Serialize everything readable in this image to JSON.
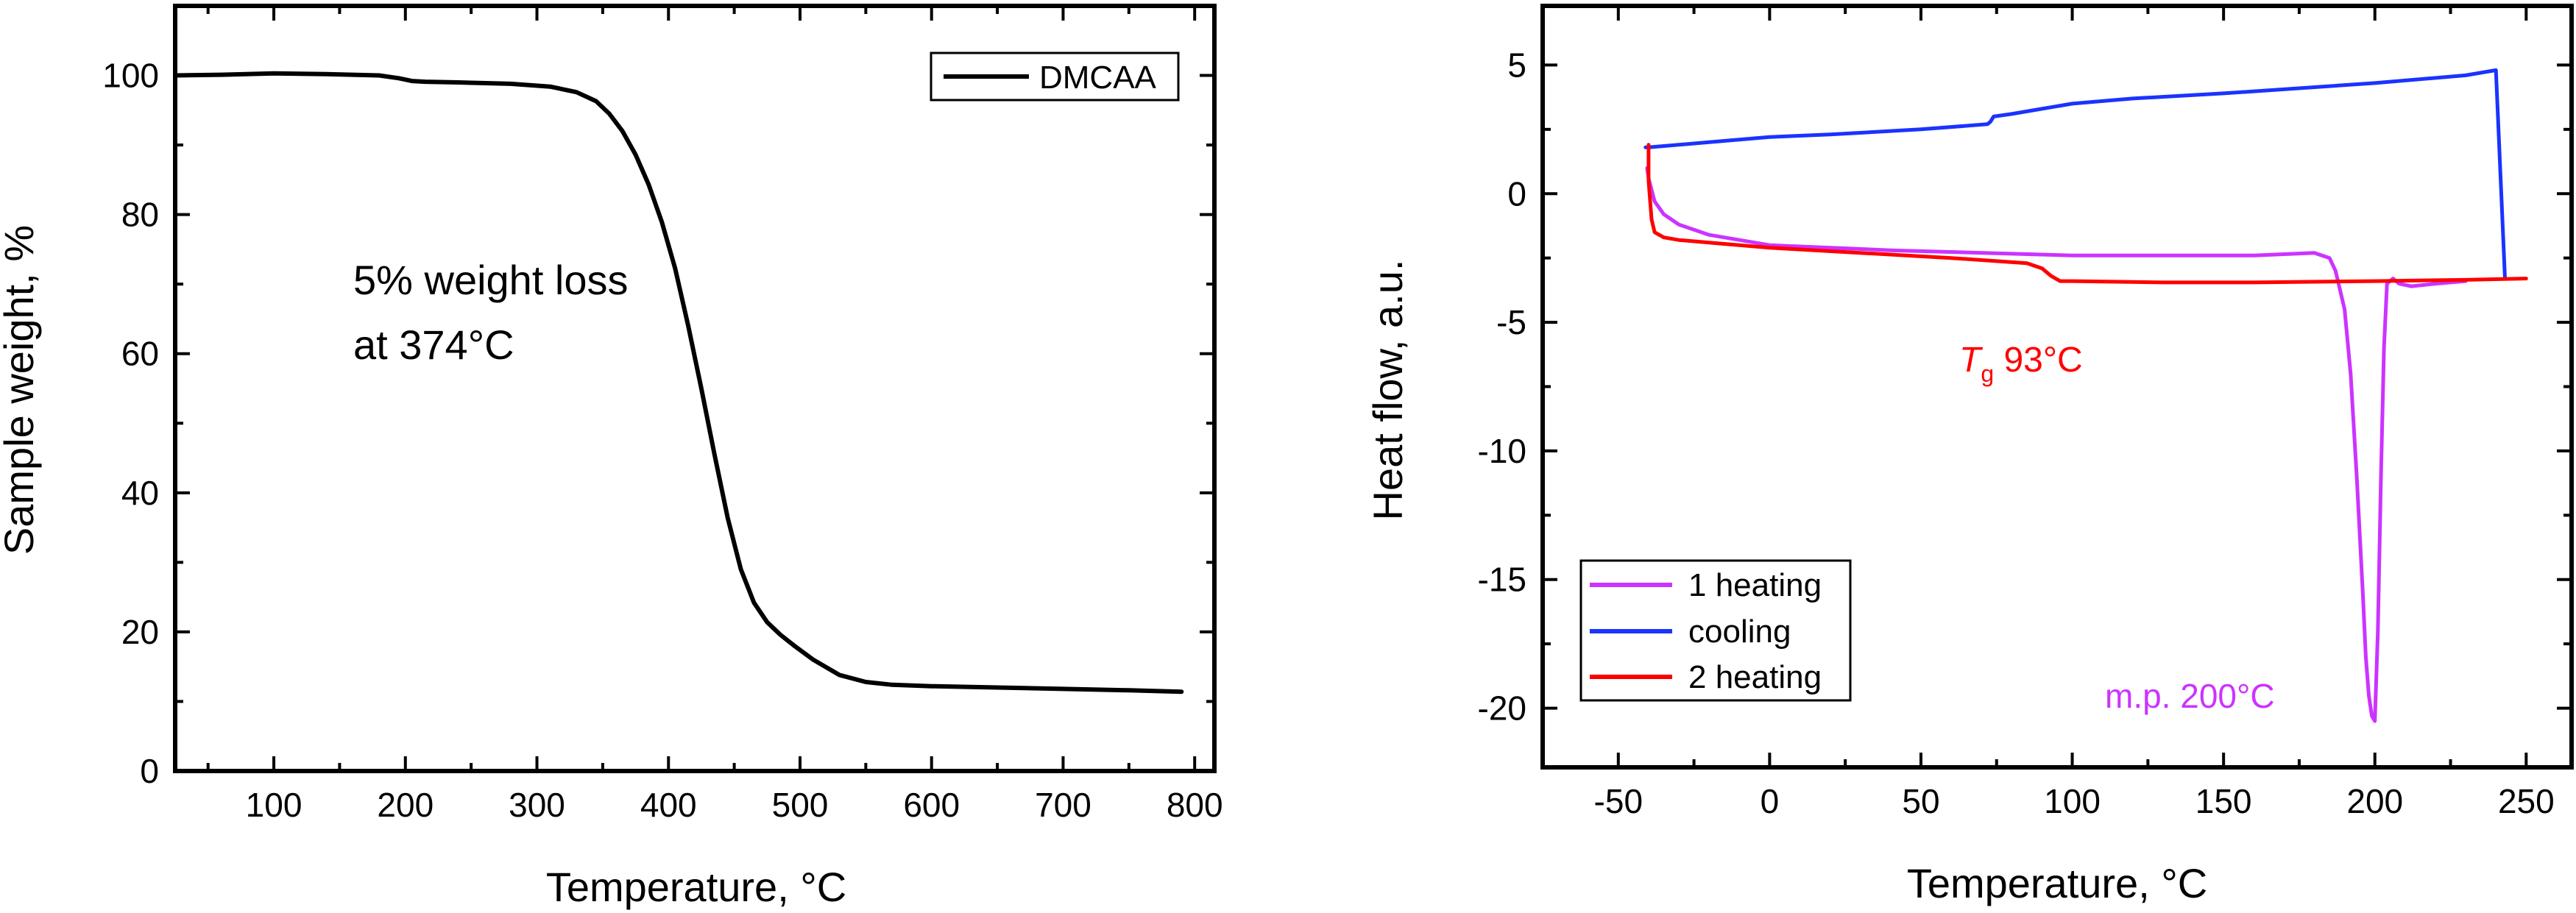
{
  "chart_data": [
    {
      "type": "line",
      "xlabel": "Temperature, °C",
      "ylabel": "Sample weight, %",
      "xlim": [
        25,
        815
      ],
      "ylim": [
        0,
        110
      ],
      "xticks": [
        100,
        200,
        300,
        400,
        500,
        600,
        700,
        800
      ],
      "yticks": [
        0,
        20,
        40,
        60,
        80,
        100
      ],
      "legend_position": "top-right",
      "annotations": [
        "5% weight loss",
        "at 374°C"
      ],
      "series": [
        {
          "name": "DMCAA",
          "color": "#000000",
          "x": [
            25,
            60,
            100,
            140,
            180,
            195,
            205,
            215,
            240,
            280,
            310,
            330,
            345,
            355,
            365,
            375,
            385,
            395,
            405,
            415,
            425,
            435,
            445,
            455,
            465,
            475,
            485,
            495,
            510,
            530,
            550,
            570,
            600,
            650,
            700,
            750,
            790
          ],
          "y": [
            100,
            100.1,
            100.3,
            100.2,
            100,
            99.6,
            99.2,
            99.1,
            99,
            98.8,
            98.4,
            97.6,
            96.3,
            94.5,
            92,
            88.6,
            84.3,
            78.9,
            72.3,
            64,
            55,
            45.5,
            36.4,
            29,
            24.2,
            21.4,
            19.6,
            18.1,
            16,
            13.8,
            12.8,
            12.4,
            12.2,
            12,
            11.8,
            11.6,
            11.4
          ]
        }
      ]
    },
    {
      "type": "line",
      "xlabel": "Temperature, °C",
      "ylabel": "Heat flow, a.u.",
      "xlim": [
        -75,
        265
      ],
      "ylim": [
        -22.3,
        7.3
      ],
      "xticks": [
        -50,
        0,
        50,
        100,
        150,
        200,
        250
      ],
      "yticks": [
        -20,
        -15,
        -10,
        -5,
        0,
        5
      ],
      "legend_position": "bottom-left",
      "annotations": [
        {
          "text_main": "T",
          "text_sub": "g",
          "text_rest": " 93°C",
          "color": "#ff0000"
        },
        {
          "text": "m.p. 200°C",
          "color": "#cc33ff"
        }
      ],
      "series": [
        {
          "name": "1 heating",
          "color": "#cc33ff",
          "x": [
            -40.5,
            -40,
            -38,
            -35,
            -30,
            -20,
            0,
            40,
            100,
            160,
            180,
            185,
            187,
            190,
            192,
            194,
            196,
            197,
            198,
            199,
            200,
            201,
            202,
            203,
            204,
            206,
            208,
            212,
            220,
            230
          ],
          "y": [
            1.0,
            0.6,
            -0.3,
            -0.8,
            -1.2,
            -1.6,
            -2.0,
            -2.2,
            -2.4,
            -2.4,
            -2.3,
            -2.5,
            -3.0,
            -4.5,
            -7.0,
            -11.0,
            -15.5,
            -18.0,
            -19.5,
            -20.3,
            -20.5,
            -17.0,
            -11.0,
            -6.0,
            -3.5,
            -3.3,
            -3.5,
            -3.6,
            -3.5,
            -3.4
          ]
        },
        {
          "name": "cooling",
          "color": "#1a33ff",
          "x": [
            243,
            240,
            230,
            200,
            150,
            120,
            100,
            90,
            80,
            74,
            73,
            72,
            50,
            20,
            0,
            -20,
            -40,
            -41
          ],
          "y": [
            -3.3,
            4.8,
            4.6,
            4.3,
            3.9,
            3.7,
            3.5,
            3.3,
            3.1,
            3.0,
            2.8,
            2.7,
            2.5,
            2.3,
            2.2,
            2.0,
            1.8,
            1.8
          ]
        },
        {
          "name": "2 heating",
          "color": "#ff0000",
          "x": [
            -40,
            -40,
            -39,
            -38,
            -35,
            -30,
            -20,
            0,
            30,
            60,
            85,
            90,
            93,
            96,
            100,
            130,
            160,
            200,
            230,
            250
          ],
          "y": [
            1.9,
            0.5,
            -1.0,
            -1.5,
            -1.7,
            -1.8,
            -1.9,
            -2.1,
            -2.3,
            -2.5,
            -2.7,
            -2.9,
            -3.2,
            -3.4,
            -3.4,
            -3.45,
            -3.45,
            -3.4,
            -3.35,
            -3.3
          ]
        }
      ]
    }
  ]
}
